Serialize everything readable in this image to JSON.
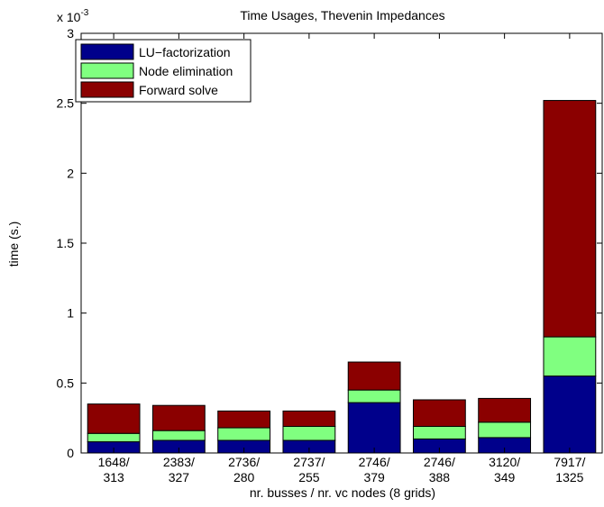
{
  "chart_data": {
    "type": "bar",
    "stacked": true,
    "title": "Time Usages, Thevenin Impedances",
    "xlabel": "nr. busses / nr. vc nodes (8 grids)",
    "ylabel": "time (s.)",
    "y_exponent_label": "x 10",
    "y_exponent_power": "-3",
    "ylim": [
      0,
      3
    ],
    "y_ticks": [
      0,
      0.5,
      1,
      1.5,
      2,
      2.5,
      3
    ],
    "y_tick_labels": [
      "0",
      "0.5",
      "1",
      "1.5",
      "2",
      "2.5",
      "3"
    ],
    "categories": [
      [
        "1648/",
        "313"
      ],
      [
        "2383/",
        "327"
      ],
      [
        "2736/",
        "280"
      ],
      [
        "2737/",
        "255"
      ],
      [
        "2746/",
        "379"
      ],
      [
        "2746/",
        "388"
      ],
      [
        "3120/",
        "349"
      ],
      [
        "7917/",
        "1325"
      ]
    ],
    "series": [
      {
        "name": "LU−factorization",
        "color": "#00008b",
        "values": [
          0.08,
          0.09,
          0.09,
          0.09,
          0.36,
          0.1,
          0.11,
          0.55
        ]
      },
      {
        "name": "Node elimination",
        "color": "#80ff80",
        "values": [
          0.06,
          0.07,
          0.09,
          0.1,
          0.09,
          0.09,
          0.11,
          0.28
        ]
      },
      {
        "name": "Forward solve",
        "color": "#8b0000",
        "values": [
          0.21,
          0.18,
          0.12,
          0.11,
          0.2,
          0.19,
          0.17,
          1.69
        ]
      }
    ],
    "legend_position": "top-left",
    "grid": false
  }
}
